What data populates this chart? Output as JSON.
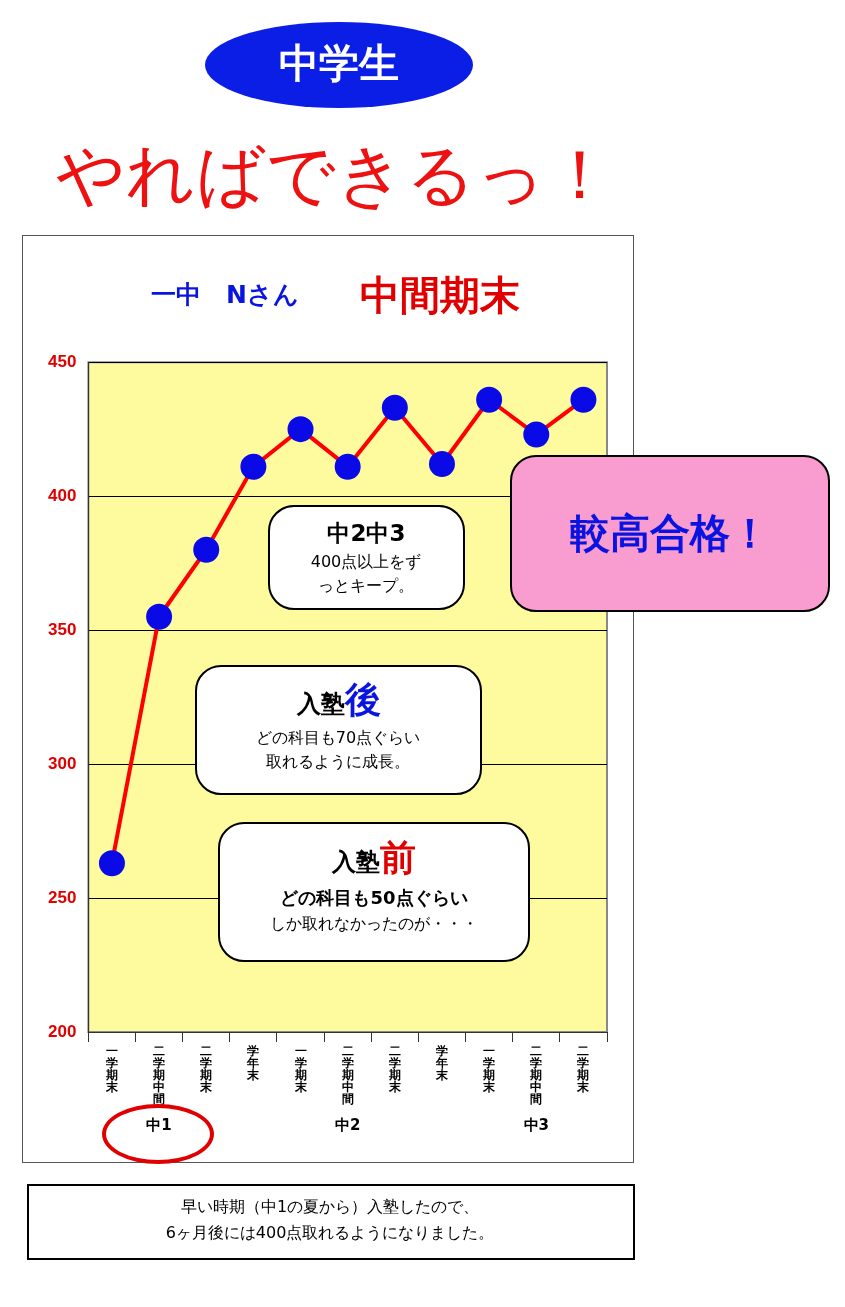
{
  "chart_data": {
    "type": "line",
    "title": "やればできるっ！",
    "subtitle": "中学生",
    "categories": [
      "一学期末",
      "二学期中間",
      "二学期末",
      "学年末",
      "一学期末",
      "二学期中間",
      "二学期末",
      "学年末",
      "一学期末",
      "二学期中間",
      "二学期末"
    ],
    "series": [
      {
        "color": "#ff0000",
        "values": [
          263,
          355,
          380,
          411,
          425,
          411,
          433,
          412,
          436,
          423,
          436
        ]
      }
    ],
    "ylim": [
      200,
      450
    ],
    "yticks": [
      200,
      250,
      300,
      350,
      400,
      450
    ],
    "grid": "y",
    "marker": "circle",
    "line_style": "solid",
    "legend": false,
    "annotations": [
      "一中　Nさん",
      "中間期末",
      "中1",
      "中2",
      "中3",
      "中2中3",
      "400点以上をずっとキープ。",
      "入塾後",
      "どの科目も70点ぐらい取れるように成長。",
      "入塾前",
      "どの科目も50点ぐらい",
      "しか取れなかったのが・・・",
      "較高合格！",
      "早い時期（中1の夏から）入塾したので、6ヶ月後には400点取れるようになりました。"
    ]
  }
}
